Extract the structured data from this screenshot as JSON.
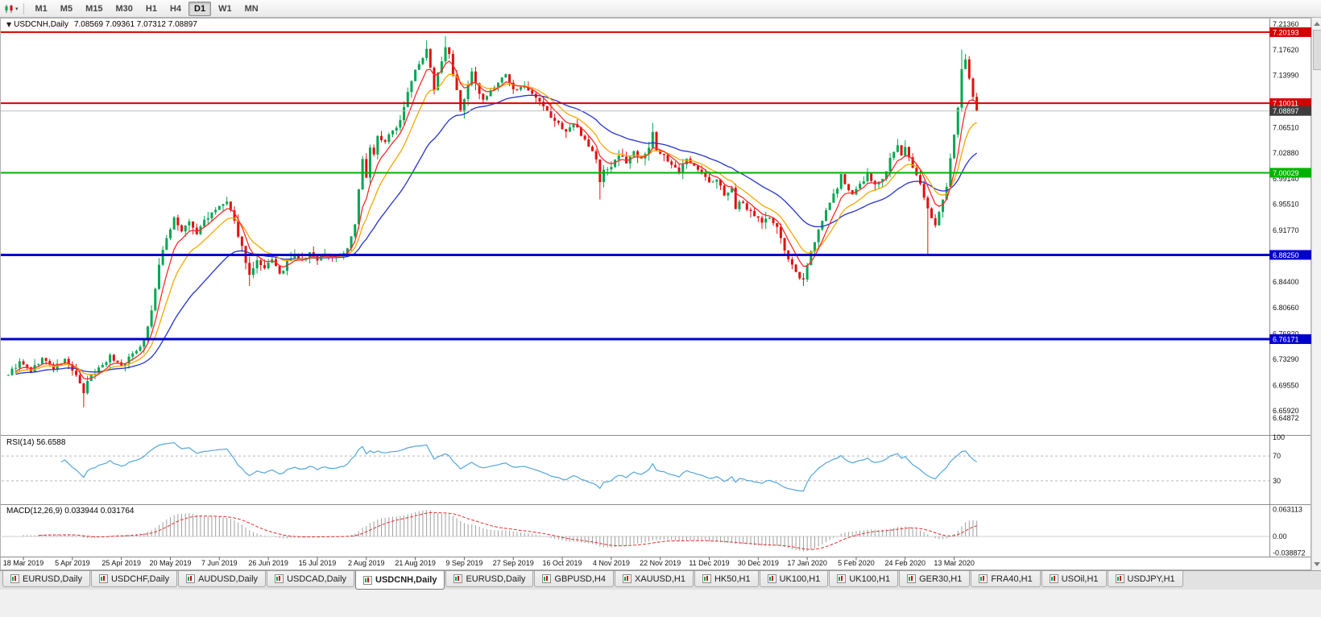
{
  "toolbar": {
    "tool_caret": "▾",
    "timeframes": [
      {
        "label": "M1",
        "active": false
      },
      {
        "label": "M5",
        "active": false
      },
      {
        "label": "M15",
        "active": false
      },
      {
        "label": "M30",
        "active": false
      },
      {
        "label": "H1",
        "active": false
      },
      {
        "label": "H4",
        "active": false
      },
      {
        "label": "D1",
        "active": true
      },
      {
        "label": "W1",
        "active": false
      },
      {
        "label": "MN",
        "active": false
      }
    ]
  },
  "chart": {
    "title": "USDCNH,Daily",
    "ohlc_text": "7.08569 7.09361 7.07312 7.08897",
    "open": "7.08569",
    "high": "7.09361",
    "low": "7.07312",
    "close": "7.08897",
    "axis_labels": [
      "7.21360",
      "7.17620",
      "7.13990",
      "7.06510",
      "7.02880",
      "6.99140",
      "6.95510",
      "6.91770",
      "6.84400",
      "6.80660",
      "6.76920",
      "6.73290",
      "6.69550",
      "6.65920",
      "6.64872"
    ],
    "levels": [
      {
        "value": 7.20193,
        "label": "7.20193",
        "color": "#d40000",
        "width": 2
      },
      {
        "value": 7.10011,
        "label": "7.10011",
        "color": "#d40000",
        "width": 2
      },
      {
        "value": 7.00029,
        "label": "7.00029",
        "color": "#00b200",
        "width": 2
      },
      {
        "value": 6.8825,
        "label": "6.88250",
        "color": "#0000cd",
        "width": 3
      },
      {
        "value": 6.76171,
        "label": "6.76171",
        "color": "#0000cd",
        "width": 3
      }
    ],
    "current_price": {
      "value": 7.08897,
      "label": "7.08897",
      "badge_color": "#3d3d3d",
      "line_color": "#bdbdbd"
    },
    "dates": [
      "18 Mar 2019",
      "5 Apr 2019",
      "25 Apr 2019",
      "20 May 2019",
      "7 Jun 2019",
      "26 Jun 2019",
      "15 Jul 2019",
      "2 Aug 2019",
      "21 Aug 2019",
      "9 Sep 2019",
      "27 Sep 2019",
      "16 Oct 2019",
      "4 Nov 2019",
      "22 Nov 2019",
      "11 Dec 2019",
      "30 Dec 2019",
      "17 Jan 2020",
      "5 Feb 2020",
      "24 Feb 2020",
      "13 Mar 2020"
    ]
  },
  "rsi": {
    "header": "RSI(14) 56.6588",
    "value": 56.6588,
    "scale": [
      "100",
      "70",
      "30"
    ],
    "upper_level": 70,
    "lower_level": 30,
    "line_color": "#53a6dc"
  },
  "macd": {
    "header": "MACD(12,26,9) 0.033944 0.031764",
    "main_value": 0.033944,
    "signal_value": 0.031764,
    "scale_top": "0.063113",
    "scale_zero": "0.00",
    "scale_bottom": "-0.038872",
    "hist_color": "#a0a0a0",
    "signal_color": "#e03030"
  },
  "tabs": [
    {
      "label": "EURUSD,Daily",
      "active": false
    },
    {
      "label": "USDCHF,Daily",
      "active": false
    },
    {
      "label": "AUDUSD,Daily",
      "active": false
    },
    {
      "label": "USDCAD,Daily",
      "active": false
    },
    {
      "label": "USDCNH,Daily",
      "active": true
    },
    {
      "label": "EURUSD,Daily",
      "active": false
    },
    {
      "label": "GBPUSD,H4",
      "active": false
    },
    {
      "label": "XAUUSD,H1",
      "active": false
    },
    {
      "label": "HK50,H1",
      "active": false
    },
    {
      "label": "UK100,H1",
      "active": false
    },
    {
      "label": "UK100,H1",
      "active": false
    },
    {
      "label": "GER30,H1",
      "active": false
    },
    {
      "label": "FRA40,H1",
      "active": false
    },
    {
      "label": "USOil,H1",
      "active": false
    },
    {
      "label": "USDJPY,H1",
      "active": false
    }
  ],
  "chart_data": {
    "type": "candlestick",
    "symbol": "USDCNH",
    "timeframe": "Daily",
    "bars": 258,
    "seed": 9,
    "noise": 0.006,
    "wick": 0.01,
    "clamp_high": 7.198,
    "clamp_low": 6.657,
    "last_close": 7.08897,
    "bull_color": "#00a651",
    "bear_color": "#e01010",
    "price_window": {
      "top": 7.218,
      "bottom": 6.6243
    },
    "ma": {
      "fast": {
        "period": 6,
        "color": "#ff2a2a"
      },
      "mid": {
        "period": 12,
        "color": "#f5a800"
      },
      "slow": {
        "period": 30,
        "color": "#2433d0"
      }
    },
    "indicators": {
      "rsi": {
        "period": 14,
        "value": 56.6588
      },
      "macd": {
        "fast": 12,
        "slow": 26,
        "signal": 9,
        "main": 0.033944,
        "signal_value": 0.031764
      }
    },
    "macd_range": [
      -0.038872,
      0.063113
    ],
    "close_anchors": [
      [
        0,
        6.712
      ],
      [
        3,
        6.728
      ],
      [
        6,
        6.716
      ],
      [
        9,
        6.734
      ],
      [
        12,
        6.72
      ],
      [
        15,
        6.732
      ],
      [
        18,
        6.71
      ],
      [
        20,
        6.682
      ],
      [
        21,
        6.702
      ],
      [
        24,
        6.72
      ],
      [
        27,
        6.737
      ],
      [
        30,
        6.724
      ],
      [
        33,
        6.74
      ],
      [
        36,
        6.76
      ],
      [
        38,
        6.802
      ],
      [
        40,
        6.868
      ],
      [
        42,
        6.906
      ],
      [
        44,
        6.936
      ],
      [
        46,
        6.916
      ],
      [
        48,
        6.93
      ],
      [
        50,
        6.912
      ],
      [
        52,
        6.933
      ],
      [
        54,
        6.941
      ],
      [
        56,
        6.952
      ],
      [
        58,
        6.958
      ],
      [
        60,
        6.929
      ],
      [
        62,
        6.894
      ],
      [
        64,
        6.853
      ],
      [
        66,
        6.872
      ],
      [
        68,
        6.861
      ],
      [
        70,
        6.878
      ],
      [
        72,
        6.853
      ],
      [
        74,
        6.871
      ],
      [
        76,
        6.882
      ],
      [
        78,
        6.874
      ],
      [
        80,
        6.885
      ],
      [
        82,
        6.877
      ],
      [
        84,
        6.884
      ],
      [
        86,
        6.879
      ],
      [
        88,
        6.884
      ],
      [
        90,
        6.89
      ],
      [
        92,
        6.926
      ],
      [
        93,
        6.974
      ],
      [
        94,
        7.018
      ],
      [
        95,
        6.996
      ],
      [
        96,
        7.038
      ],
      [
        97,
        7.026
      ],
      [
        98,
        7.052
      ],
      [
        100,
        7.046
      ],
      [
        102,
        7.06
      ],
      [
        104,
        7.076
      ],
      [
        106,
        7.118
      ],
      [
        108,
        7.15
      ],
      [
        110,
        7.166
      ],
      [
        111,
        7.176
      ],
      [
        112,
        7.153
      ],
      [
        113,
        7.117
      ],
      [
        114,
        7.143
      ],
      [
        115,
        7.158
      ],
      [
        116,
        7.181
      ],
      [
        117,
        7.168
      ],
      [
        118,
        7.14
      ],
      [
        119,
        7.116
      ],
      [
        120,
        7.086
      ],
      [
        121,
        7.106
      ],
      [
        122,
        7.128
      ],
      [
        123,
        7.143
      ],
      [
        124,
        7.126
      ],
      [
        126,
        7.106
      ],
      [
        128,
        7.116
      ],
      [
        130,
        7.13
      ],
      [
        132,
        7.14
      ],
      [
        134,
        7.118
      ],
      [
        136,
        7.126
      ],
      [
        138,
        7.116
      ],
      [
        140,
        7.106
      ],
      [
        142,
        7.094
      ],
      [
        144,
        7.08
      ],
      [
        146,
        7.07
      ],
      [
        148,
        7.06
      ],
      [
        150,
        7.07
      ],
      [
        152,
        7.056
      ],
      [
        154,
        7.04
      ],
      [
        156,
        7.02
      ],
      [
        157,
        6.986
      ],
      [
        158,
        7.004
      ],
      [
        160,
        7.01
      ],
      [
        162,
        7.026
      ],
      [
        164,
        7.016
      ],
      [
        166,
        7.03
      ],
      [
        168,
        7.023
      ],
      [
        170,
        7.036
      ],
      [
        171,
        7.056
      ],
      [
        172,
        7.033
      ],
      [
        174,
        7.026
      ],
      [
        176,
        7.01
      ],
      [
        178,
        7.0
      ],
      [
        180,
        7.02
      ],
      [
        182,
        7.013
      ],
      [
        184,
        7.0
      ],
      [
        186,
        6.986
      ],
      [
        188,
        6.99
      ],
      [
        190,
        6.97
      ],
      [
        192,
        6.976
      ],
      [
        193,
        6.946
      ],
      [
        194,
        6.96
      ],
      [
        196,
        6.95
      ],
      [
        198,
        6.94
      ],
      [
        200,
        6.93
      ],
      [
        202,
        6.936
      ],
      [
        204,
        6.92
      ],
      [
        206,
        6.89
      ],
      [
        208,
        6.866
      ],
      [
        210,
        6.846
      ],
      [
        211,
        6.85
      ],
      [
        212,
        6.87
      ],
      [
        214,
        6.903
      ],
      [
        216,
        6.93
      ],
      [
        218,
        6.96
      ],
      [
        220,
        6.976
      ],
      [
        221,
        6.996
      ],
      [
        222,
        6.986
      ],
      [
        224,
        6.97
      ],
      [
        226,
        6.983
      ],
      [
        228,
        6.996
      ],
      [
        230,
        6.983
      ],
      [
        232,
        6.99
      ],
      [
        234,
        7.02
      ],
      [
        236,
        7.04
      ],
      [
        237,
        7.026
      ],
      [
        238,
        7.036
      ],
      [
        240,
        7.006
      ],
      [
        242,
        6.983
      ],
      [
        244,
        6.95
      ],
      [
        246,
        6.926
      ],
      [
        247,
        6.943
      ],
      [
        248,
        6.96
      ],
      [
        249,
        6.983
      ],
      [
        250,
        7.02
      ],
      [
        251,
        7.056
      ],
      [
        252,
        7.093
      ],
      [
        253,
        7.146
      ],
      [
        254,
        7.16
      ],
      [
        255,
        7.133
      ],
      [
        256,
        7.11
      ],
      [
        257,
        7.08897
      ]
    ],
    "low_spikes": [
      [
        20,
        6.664
      ],
      [
        64,
        6.838
      ],
      [
        157,
        6.962
      ],
      [
        211,
        6.838
      ],
      [
        244,
        6.884
      ]
    ],
    "high_spikes": [
      [
        111,
        7.19
      ],
      [
        116,
        7.196
      ],
      [
        171,
        7.072
      ],
      [
        253,
        7.177
      ]
    ]
  }
}
